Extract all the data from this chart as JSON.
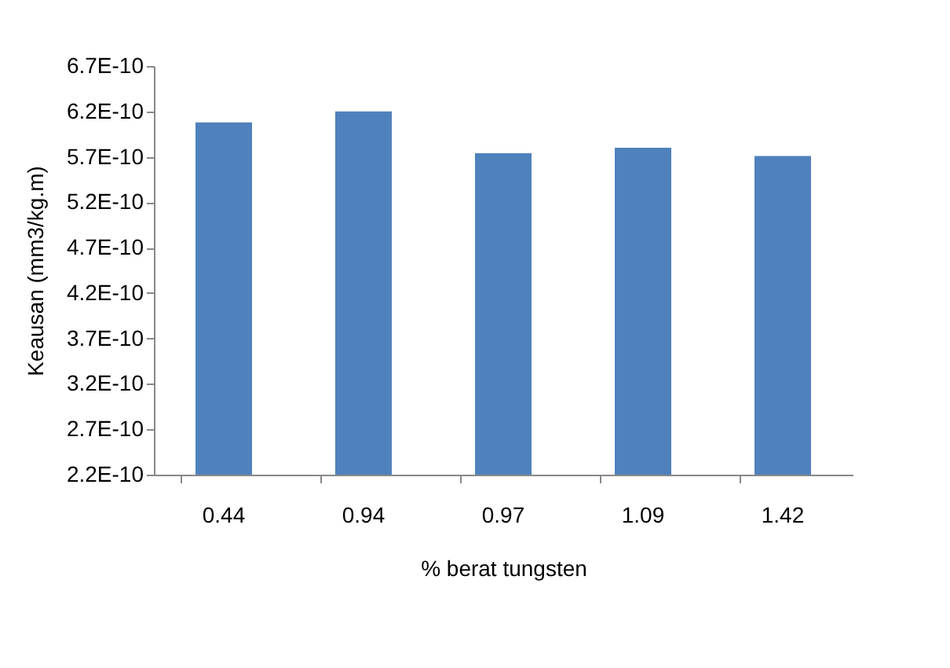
{
  "chart_data": {
    "type": "bar",
    "xlabel": "% berat tungsten",
    "ylabel": "Keausan (mm3/kg.m)",
    "categories": [
      "0.44",
      "0.94",
      "0.97",
      "1.09",
      "1.42"
    ],
    "values": [
      6.08e-10,
      6.2e-10,
      5.74e-10,
      5.8e-10,
      5.71e-10
    ],
    "color": "#4f81bd",
    "ylim": [
      2.2e-10,
      6.7e-10
    ],
    "yticks": [
      {
        "value": 2.2e-10,
        "label": "2.2E-10"
      },
      {
        "value": 2.7e-10,
        "label": "2.7E-10"
      },
      {
        "value": 3.2e-10,
        "label": "3.2E-10"
      },
      {
        "value": 3.7e-10,
        "label": "3.7E-10"
      },
      {
        "value": 4.2e-10,
        "label": "4.2E-10"
      },
      {
        "value": 4.7e-10,
        "label": "4.7E-10"
      },
      {
        "value": 5.2e-10,
        "label": "5.2E-10"
      },
      {
        "value": 5.7e-10,
        "label": "5.7E-10"
      },
      {
        "value": 6.2e-10,
        "label": "6.2E-10"
      },
      {
        "value": 6.7e-10,
        "label": "6.7E-10"
      }
    ],
    "grid": false
  }
}
